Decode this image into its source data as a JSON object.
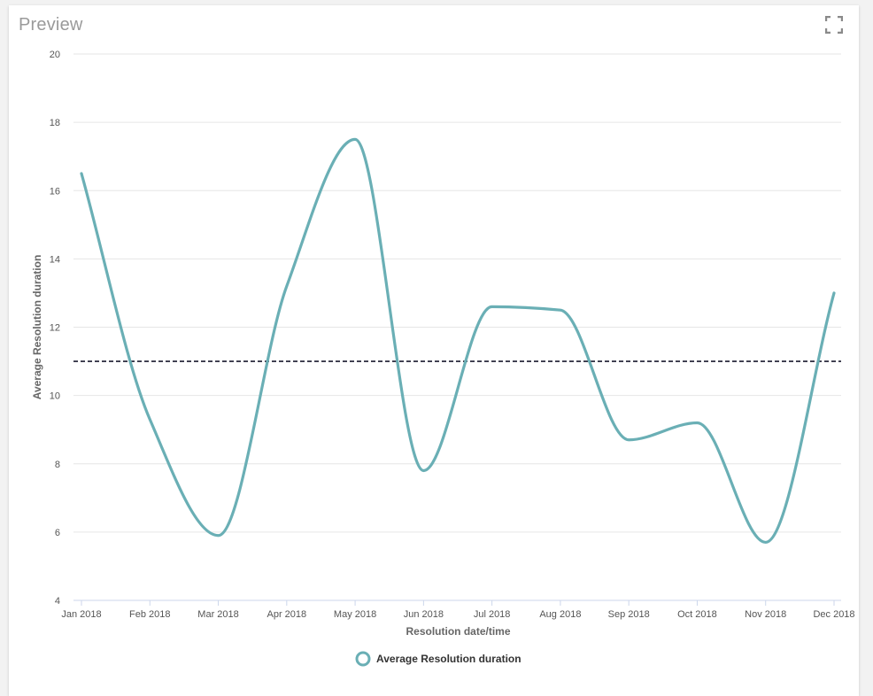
{
  "panel": {
    "title": "Preview",
    "expand_icon": "fullscreen-icon"
  },
  "colors": {
    "series": "#6aafb5",
    "reference_line": "#1a1a2e",
    "grid": "#e6e6e6"
  },
  "chart_data": {
    "type": "line",
    "title": "",
    "xlabel": "Resolution date/time",
    "ylabel": "Average Resolution duration",
    "ylim": [
      4,
      20
    ],
    "y_ticks": [
      "4",
      "6",
      "8",
      "10",
      "12",
      "14",
      "16",
      "18",
      "20"
    ],
    "categories": [
      "Jan 2018",
      "Feb 2018",
      "Mar 2018",
      "Apr 2018",
      "May 2018",
      "Jun 2018",
      "Jul 2018",
      "Aug 2018",
      "Sep 2018",
      "Oct 2018",
      "Nov 2018",
      "Dec 2018"
    ],
    "series": [
      {
        "name": "Average Resolution duration",
        "values": [
          16.5,
          9.3,
          5.9,
          13.2,
          17.5,
          7.8,
          12.6,
          12.5,
          8.7,
          9.2,
          5.7,
          13.0
        ]
      }
    ],
    "reference_line": {
      "value": 11,
      "style": "dashed"
    },
    "grid": "horizontal",
    "legend_position": "bottom"
  }
}
